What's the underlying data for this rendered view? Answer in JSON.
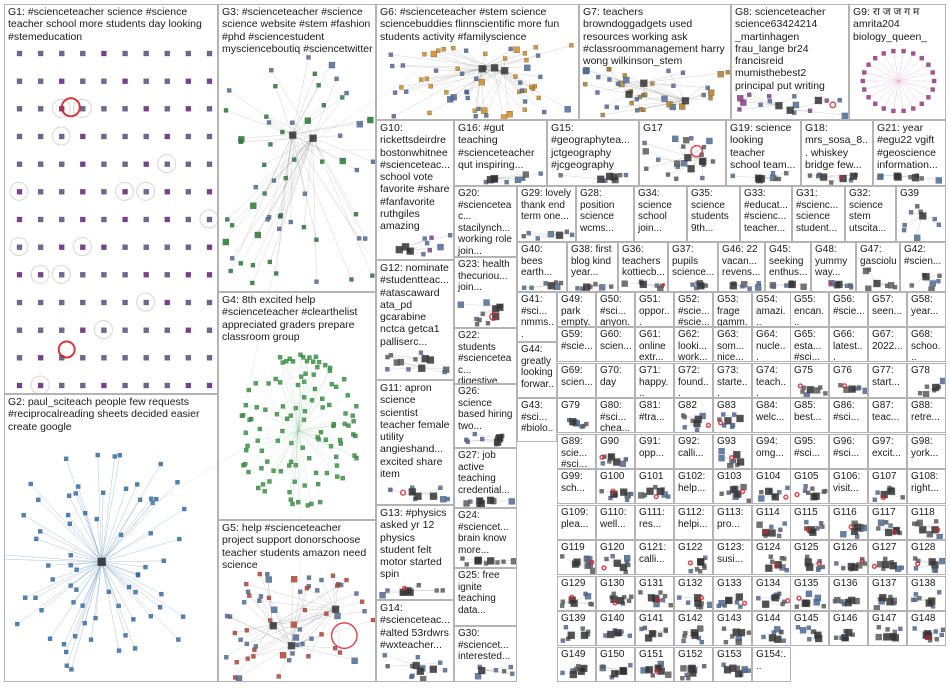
{
  "graph": {
    "groups": [
      {
        "id": "G1",
        "label": "G1: #scienceteacher science #science teacher school more students day looking #stemeducation",
        "style": "grid",
        "color": "#6b2a8a"
      },
      {
        "id": "G2",
        "label": "G2: paul_sciteach people few requests #reciprocalreading sheets decided easier create google",
        "style": "star",
        "color": "#2a6fb5"
      },
      {
        "id": "G3",
        "label": "G3: #scienceteacher #science science website #stem #fashion #phd #sciencestudent mysciencebouti​q #sciencetwitter",
        "style": "cluster",
        "color": "#1f7a2e"
      },
      {
        "id": "G4",
        "label": "G4: 8th excited help #scienceteacher #clearthelist appreciated graders prepare classroom group",
        "style": "ellipse",
        "color": "#2e9a3a"
      },
      {
        "id": "G5",
        "label": "G5: help #scienceteacher project support donorschoose teacher students amazon need science",
        "style": "cluster",
        "color": "#c0392b"
      },
      {
        "id": "G6",
        "label": "G6: #scienceteacher #stem science sciencebuddies flinnscientific more fun students activity #familyscience",
        "style": "cluster",
        "color": "#d08a1a"
      },
      {
        "id": "G7",
        "label": "G7: teachers browndoggadgets used resources working ask #classroommanagement harry wong wilkinson_stem",
        "style": "cluster",
        "color": "#b07a20"
      },
      {
        "id": "G8",
        "label": "G8: scienceteacher science63424214 _martinhagen frau_lange br24 francisreid mumisthebest2 principal put writing",
        "style": "cluster",
        "color": "#8a3a8a"
      },
      {
        "id": "G9",
        "label": "G9: रा ज ज ग म amrita204 biology_queen_",
        "style": "ring",
        "color": "#a0308a"
      },
      {
        "id": "G10",
        "label": "G10: rickettsdeirdre bostonwhitnee #scienceteac... school vote favorite #share #fanfavorite ruthgiles amazing",
        "style": "cluster",
        "color": "#7a3a9a"
      },
      {
        "id": "G11",
        "label": "G11: apron science scientist teacher female utility angieshand... excited share item",
        "style": "cluster",
        "color": "#3a5a9a"
      },
      {
        "id": "G12",
        "label": "G12: nominate #studentteac... #atascaward ata_pd gcarabine nctca getca1 palliserc...",
        "style": "cluster",
        "color": "#5a5a5a"
      },
      {
        "id": "G13",
        "label": "G13: #physics asked yr 12 physics student felt motor started spin",
        "style": "cluster",
        "color": "#5a5a5a"
      },
      {
        "id": "G14",
        "label": "G14: #scienceteac... #alted 53rdwrs #wxteacher...",
        "style": "cluster",
        "color": "#5a5a5a"
      },
      {
        "id": "G15",
        "label": "G15: #geographytea... jctgeography #jcgeography",
        "style": "cluster",
        "color": "#5a5a5a"
      },
      {
        "id": "G16",
        "label": "G16: #gut teaching #scienceteacher qut inspiring...",
        "style": "cluster",
        "color": "#5a5a5a"
      },
      {
        "id": "G17",
        "label": "G17",
        "style": "cluster",
        "color": "#5a5a5a"
      },
      {
        "id": "G18",
        "label": "G18: mrs_sosa_8... whiskey bridge few...",
        "style": "cluster",
        "color": "#5a5a5a"
      },
      {
        "id": "G19",
        "label": "G19: science looking teacher school team...",
        "style": "cluster",
        "color": "#5a5a5a"
      },
      {
        "id": "G20",
        "label": "G20: #scienceteac... stacilynch... working role join...",
        "style": "cluster",
        "color": "#5a5a5a"
      },
      {
        "id": "G21",
        "label": "G21: year #egu22 vgift #geoscience information...",
        "style": "cluster",
        "color": "#5a5a5a"
      },
      {
        "id": "G22",
        "label": "G22: students #scienceteac... digestive...",
        "style": "cluster",
        "color": "#5a5a5a"
      },
      {
        "id": "G23",
        "label": "G23: health thecuriou... join...",
        "style": "cluster",
        "color": "#5a5a5a"
      },
      {
        "id": "G24",
        "label": "G24: #sciencet... brain know more...",
        "style": "cluster",
        "color": "#5a5a5a"
      },
      {
        "id": "G25",
        "label": "G25: free ignite teaching data...",
        "style": "cluster",
        "color": "#5a5a5a"
      },
      {
        "id": "G26",
        "label": "G26: science based hiring two...",
        "style": "cluster",
        "color": "#5a5a5a"
      },
      {
        "id": "G27",
        "label": "G27: job active teaching credential...",
        "style": "cluster",
        "color": "#5a5a5a"
      },
      {
        "id": "G28",
        "label": "G28: position science wcms...",
        "style": "cluster",
        "color": "#5a5a5a"
      },
      {
        "id": "G29",
        "label": "G29: lovely thank end term one...",
        "style": "cluster",
        "color": "#5a5a5a"
      },
      {
        "id": "G30",
        "label": "G30: #sciencet... interested...",
        "style": "cluster",
        "color": "#5a5a5a"
      },
      {
        "id": "G31",
        "label": "G31: #scienc... science student...",
        "style": "cluster",
        "color": "#5a5a5a"
      },
      {
        "id": "G32",
        "label": "G32: science stem utscita...",
        "style": "cluster",
        "color": "#5a5a5a"
      },
      {
        "id": "G33",
        "label": "G33: #educat... #scienc... teacher...",
        "style": "cluster",
        "color": "#5a5a5a"
      },
      {
        "id": "G34",
        "label": "G34: science school join...",
        "style": "cluster",
        "color": "#5a5a5a"
      },
      {
        "id": "G35",
        "label": "G35: science students 9th...",
        "style": "cluster",
        "color": "#5a5a5a"
      },
      {
        "id": "G36",
        "label": "G36: teachers kottiecb...",
        "style": "cluster",
        "color": "#5a5a5a"
      },
      {
        "id": "G37",
        "label": "G37: pupils science...",
        "style": "cluster",
        "color": "#5a5a5a"
      },
      {
        "id": "G38",
        "label": "G38: first blog kind year...",
        "style": "cluster",
        "color": "#5a5a5a"
      },
      {
        "id": "G39",
        "label": "G39",
        "style": "cluster",
        "color": "#5a5a5a"
      },
      {
        "id": "G40",
        "label": "G40: bees earth...",
        "style": "cluster",
        "color": "#5a5a5a"
      },
      {
        "id": "G41",
        "label": "G41: #sci... nmms...",
        "style": "cluster",
        "color": "#5a5a5a"
      },
      {
        "id": "G42",
        "label": "G42: #scien...",
        "style": "cluster",
        "color": "#5a5a5a"
      },
      {
        "id": "G43",
        "label": "G43: #sci... #biolo...",
        "style": "cluster",
        "color": "#5a5a5a"
      },
      {
        "id": "G44",
        "label": "G44: greatly looking forwar...",
        "style": "cluster",
        "color": "#5a5a5a"
      },
      {
        "id": "G45",
        "label": "G45: seeking enthus...",
        "style": "cluster",
        "color": "#5a5a5a"
      },
      {
        "id": "G46",
        "label": "G46: 22 vacan... revens...",
        "style": "cluster",
        "color": "#5a5a5a"
      },
      {
        "id": "G47",
        "label": "G47: gasciolu",
        "style": "cluster",
        "color": "#5a5a5a"
      },
      {
        "id": "G48",
        "label": "G48: yummy way...",
        "style": "cluster",
        "color": "#5a5a5a"
      }
    ],
    "small_cells": [
      "G49",
      "G50",
      "G51",
      "G52",
      "G53",
      "G54",
      "G55",
      "G56",
      "G57",
      "G58",
      "G59",
      "G60",
      "G61",
      "G62",
      "G63",
      "G64",
      "G65",
      "G66",
      "G67",
      "G68",
      "G69",
      "G70",
      "G71",
      "G72",
      "G73",
      "G74",
      "G75",
      "G76",
      "G77",
      "G78",
      "G79",
      "G80",
      "G81",
      "G82",
      "G83",
      "G84",
      "G85",
      "G86",
      "G87",
      "G88",
      "G89",
      "G90",
      "G91",
      "G92",
      "G93",
      "G94",
      "G95",
      "G96",
      "G97",
      "G98",
      "G99",
      "G100",
      "G101",
      "G102",
      "G103",
      "G104",
      "G105",
      "G106",
      "G107",
      "G108",
      "G109",
      "G110",
      "G111",
      "G112",
      "G113",
      "G114",
      "G115",
      "G116",
      "G117",
      "G118",
      "G119",
      "G120",
      "G121",
      "G122",
      "G123",
      "G124",
      "G125",
      "G126",
      "G127",
      "G128",
      "G129",
      "G130",
      "G131",
      "G132",
      "G133",
      "G134",
      "G135",
      "G136",
      "G137",
      "G138",
      "G139",
      "G140",
      "G141",
      "G142",
      "G143",
      "G144",
      "G145",
      "G146",
      "G147",
      "G148",
      "G149",
      "G150",
      "G151",
      "G152",
      "G153",
      "G154"
    ],
    "small_labels": {
      "G49": "G49: park empty...",
      "G50": "G50: #sci... anyon...",
      "G51": "G51: oppor... agree...",
      "G52": "G52: #scie... #scie...",
      "G53": "G53: frage gamm...",
      "G54": "G54: amazi... stude...",
      "G55": "G55: encan... nueva...",
      "G56": "G56: #scie...",
      "G57": "G57: seen...",
      "G58": "G58: year...",
      "G59": "G59: #scie...",
      "G60": "G60: scien...",
      "G61": "G61: online extr...",
      "G62": "G62: looki... work...",
      "G63": "G63: som... nice...",
      "G64": "G64: nucle...",
      "G65": "G65: esta... #sci...",
      "G66": "G66: latest...",
      "G67": "G67: 2022...",
      "G68": "G68: schoo...",
      "G69": "G69: scien...",
      "G70": "G70: day",
      "G71": "G71: happy...",
      "G72": "G72: found...",
      "G73": "G73: starte...",
      "G74": "G74: teach...",
      "G75": "G75",
      "G76": "G76",
      "G77": "G77: start...",
      "G78": "G78",
      "G79": "G79",
      "G80": "G80: #sci... chea...",
      "G81": "G81: #tra...",
      "G82": "G82",
      "G84": "G84: welc...",
      "G85": "G85: best...",
      "G86": "G86: #sci...",
      "G87": "G87: teac...",
      "G88": "G88: retre...",
      "G89": "G89: scie... #sci...",
      "G90": "G90",
      "G91": "G91: opp...",
      "G92": "G92: calli...",
      "G94": "G94: omg...",
      "G95": "G95: #sci...",
      "G96": "G96: #sci...",
      "G97": "G97: excit...",
      "G98": "G98: york...",
      "G99": "G99: sch...",
      "G102": "G102: help...",
      "G106": "G106: visit...",
      "G108": "G108: right...",
      "G109": "G109: plea...",
      "G110": "G110: well...",
      "G111": "G111: res...",
      "G112": "G112: helpi...",
      "G113": "G113: pro...",
      "G114": "G114",
      "G121": "G121: calli...",
      "G123": "G123: susi...",
      "G143": "G143",
      "G147": "G147",
      "G154": "G154:..."
    }
  }
}
